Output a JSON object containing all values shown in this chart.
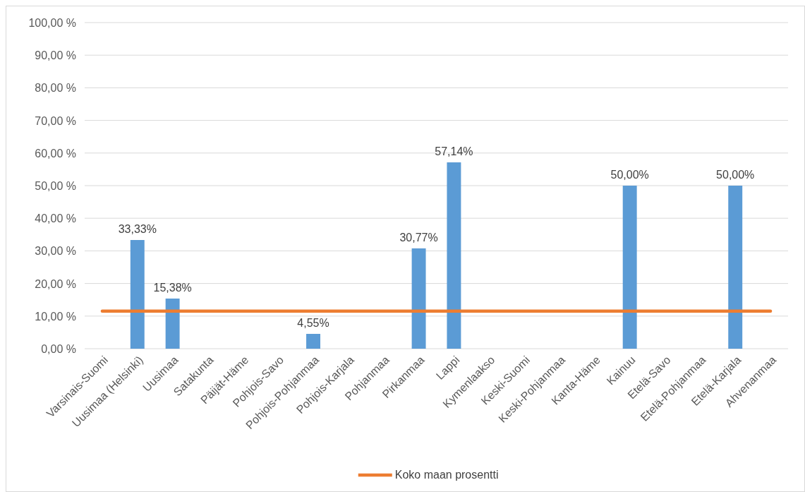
{
  "chart_data": {
    "type": "bar",
    "categories": [
      "Varsinais-Suomi",
      "Uusimaa (Helsinki)",
      "Uusimaa",
      "Satakunta",
      "Päijät-Häme",
      "Pohjois-Savo",
      "Pohjois-Pohjanmaa",
      "Pohjois-Karjala",
      "Pohjanmaa",
      "Pirkanmaa",
      "Lappi",
      "Kymenlaakso",
      "Keski-Suomi",
      "Keski-Pohjanmaa",
      "Kanta-Häme",
      "Kainuu",
      "Etelä-Savo",
      "Etelä-Pohjanmaa",
      "Etelä-Karjala",
      "Ahvenanmaa"
    ],
    "series": [
      {
        "color": "#5b9bd5",
        "values": [
          0,
          33.33,
          15.38,
          0,
          0,
          0,
          4.55,
          0,
          0,
          30.77,
          57.14,
          0,
          0,
          0,
          0,
          50,
          0,
          0,
          50,
          0
        ],
        "value_labels": [
          null,
          "33,33%",
          "15,38%",
          null,
          null,
          null,
          "4,55%",
          null,
          null,
          "30,77%",
          "57,14%",
          null,
          null,
          null,
          null,
          "50,00%",
          null,
          null,
          "50,00%",
          null
        ]
      },
      {
        "type": "line",
        "name": "Koko maan prosentti",
        "color": "#ed7d31",
        "values": [
          11.5,
          11.5,
          11.5,
          11.5,
          11.5,
          11.5,
          11.5,
          11.5,
          11.5,
          11.5,
          11.5,
          11.5,
          11.5,
          11.5,
          11.5,
          11.5,
          11.5,
          11.5,
          11.5,
          11.5
        ]
      }
    ],
    "ylim": [
      0,
      100
    ],
    "yticks": [
      {
        "value": 0,
        "label": "0,00 %"
      },
      {
        "value": 10,
        "label": "10,00 %"
      },
      {
        "value": 20,
        "label": "20,00 %"
      },
      {
        "value": 30,
        "label": "30,00 %"
      },
      {
        "value": 40,
        "label": "40,00 %"
      },
      {
        "value": 50,
        "label": "50,00 %"
      },
      {
        "value": 60,
        "label": "60,00 %"
      },
      {
        "value": 70,
        "label": "70,00 %"
      },
      {
        "value": 80,
        "label": "80,00 %"
      },
      {
        "value": 90,
        "label": "90,00 %"
      },
      {
        "value": 100,
        "label": "100,00 %"
      }
    ],
    "grid": "y",
    "legend": "bottom",
    "marker": "none",
    "line_style": "solid"
  }
}
